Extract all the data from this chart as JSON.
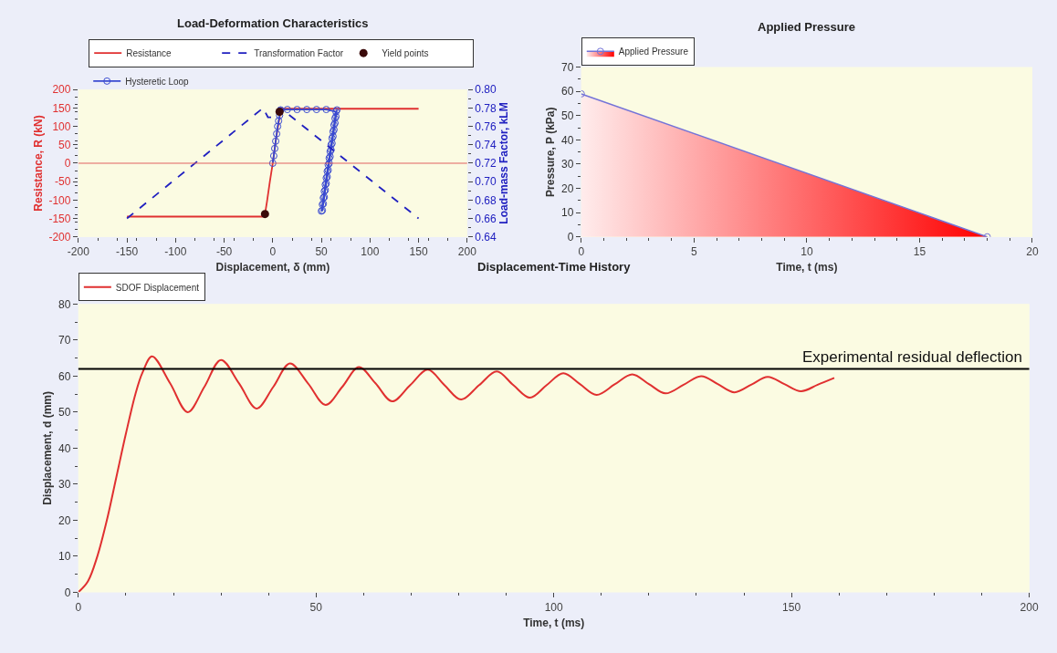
{
  "chart_data": [
    {
      "type": "line",
      "title": "Load-Deformation Characteristics",
      "xlabel": "Displacement, δ (mm)",
      "ylabel": "Resistance, R (kN)",
      "y2label": "Load-mass Factor, kLM",
      "xlim": [
        -200,
        200
      ],
      "xticks": [
        -200,
        -150,
        -100,
        -50,
        0,
        50,
        100,
        150,
        200
      ],
      "ylim": [
        -200,
        200
      ],
      "yticks": [
        -200,
        -150,
        -100,
        -50,
        0,
        50,
        100,
        150,
        200
      ],
      "y2lim": [
        0.64,
        0.8
      ],
      "y2ticks": [
        0.64,
        0.66,
        0.68,
        {
          "value": 0.7,
          "label": "0.70"
        },
        0.72,
        0.74,
        0.76,
        0.78,
        {
          "value": 0.8,
          "label": "0.80"
        }
      ],
      "legend": "top",
      "grid": false,
      "ref_lines": [
        {
          "axis": "y",
          "value": 0,
          "color": "#e06060"
        }
      ],
      "series": [
        {
          "name": "Resistance",
          "type": "line",
          "color": "#e03030",
          "line_style": "solid",
          "x": [
            -150,
            -10,
            -8,
            -6,
            -3,
            0,
            3,
            6,
            8,
            10,
            150
          ],
          "values": [
            -145,
            -145,
            -138,
            -105,
            -50,
            0,
            60,
            110,
            138,
            148,
            148
          ]
        },
        {
          "name": "Transformation Factor",
          "type": "line",
          "axis": "y2",
          "color": "#2020c0",
          "line_style": "dashed",
          "x": [
            -150,
            -10,
            -5,
            0,
            8,
            150
          ],
          "values": [
            0.66,
            0.78,
            0.77,
            0.77,
            0.78,
            0.66
          ]
        },
        {
          "name": "Yield points",
          "type": "scatter",
          "marker": "circle",
          "color": "#3a0a0a",
          "x": [
            -8,
            7
          ],
          "values": [
            -138,
            140
          ]
        },
        {
          "name": "Hysteretic Loop",
          "type": "line",
          "marker": "circle",
          "color": "#3a4ad0",
          "line_style": "solid",
          "x": [
            0,
            1,
            2,
            3,
            4,
            5,
            6,
            7,
            8,
            15,
            25,
            35,
            45,
            55,
            65,
            64,
            63,
            62,
            61,
            60,
            59,
            58,
            57,
            56,
            55,
            54,
            53,
            52,
            51,
            50,
            51,
            52,
            53,
            54,
            55,
            56,
            57,
            58,
            59,
            60,
            61,
            62,
            63,
            64,
            65,
            66
          ],
          "values": [
            0,
            20,
            40,
            60,
            80,
            100,
            115,
            130,
            145,
            146,
            146,
            146,
            146,
            146,
            140,
            122,
            104,
            86,
            68,
            50,
            32,
            14,
            -4,
            -22,
            -40,
            -58,
            -76,
            -94,
            -112,
            -130,
            -128,
            -110,
            -92,
            -73,
            -55,
            -37,
            -19,
            0,
            18,
            36,
            54,
            73,
            91,
            109,
            127,
            145
          ]
        }
      ]
    },
    {
      "type": "area",
      "title": "Applied Pressure",
      "xlabel": "Time, t (ms)",
      "ylabel": "Pressure, P (kPa)",
      "xlim": [
        0,
        20
      ],
      "xticks": [
        0,
        5,
        10,
        15,
        20
      ],
      "ylim": [
        0,
        70
      ],
      "yticks": [
        0,
        10,
        20,
        30,
        40,
        50,
        60,
        70
      ],
      "legend": "top left",
      "grid": false,
      "series": [
        {
          "name": "Applied Pressure",
          "color": "#ff0000",
          "marker": "circle",
          "x": [
            0,
            18
          ],
          "values": [
            59,
            0
          ]
        }
      ]
    },
    {
      "type": "line",
      "title": "Displacement-Time History",
      "xlabel": "Time, t (ms)",
      "ylabel": "Displacement, d (mm)",
      "xlim": [
        0,
        200
      ],
      "xticks": [
        0,
        50,
        100,
        150,
        200
      ],
      "ylim": [
        0,
        80
      ],
      "yticks": [
        0,
        10,
        20,
        30,
        40,
        50,
        60,
        70,
        80
      ],
      "legend": "top left",
      "grid": false,
      "ref_lines": [
        {
          "axis": "y",
          "value": 62,
          "label": "Experimental residual deflection",
          "color": "#000000"
        }
      ],
      "series": [
        {
          "name": "SDOF Displacement",
          "color": "#e03030",
          "line_style": "solid",
          "x": [
            0,
            2,
            4,
            6,
            8,
            10,
            12,
            13.5,
            15.5,
            19.3,
            23,
            26.5,
            30,
            33.8,
            37.5,
            41,
            44.5,
            48.3,
            52,
            55.5,
            59,
            62.5,
            66,
            69.8,
            73.5,
            77,
            80.5,
            84.3,
            88,
            91.5,
            95,
            98.5,
            102,
            105.5,
            109,
            112.8,
            116.5,
            120,
            123.5,
            127.3,
            131,
            134.5,
            138,
            141.5,
            145,
            148.5,
            152,
            155.5,
            159
          ],
          "values": [
            0,
            3,
            10,
            20,
            32,
            44,
            55,
            61,
            65.5,
            58,
            50,
            57,
            64.5,
            58,
            51,
            57,
            63.5,
            58,
            52,
            57,
            62.5,
            58,
            53,
            57.5,
            61.8,
            57.5,
            53.5,
            57.5,
            61.3,
            57.5,
            54,
            57.5,
            60.8,
            57.8,
            54.8,
            57.7,
            60.5,
            57.8,
            55.2,
            57.6,
            60,
            57.8,
            55.5,
            57.6,
            59.8,
            57.8,
            55.8,
            57.6,
            59.5
          ]
        }
      ]
    }
  ]
}
